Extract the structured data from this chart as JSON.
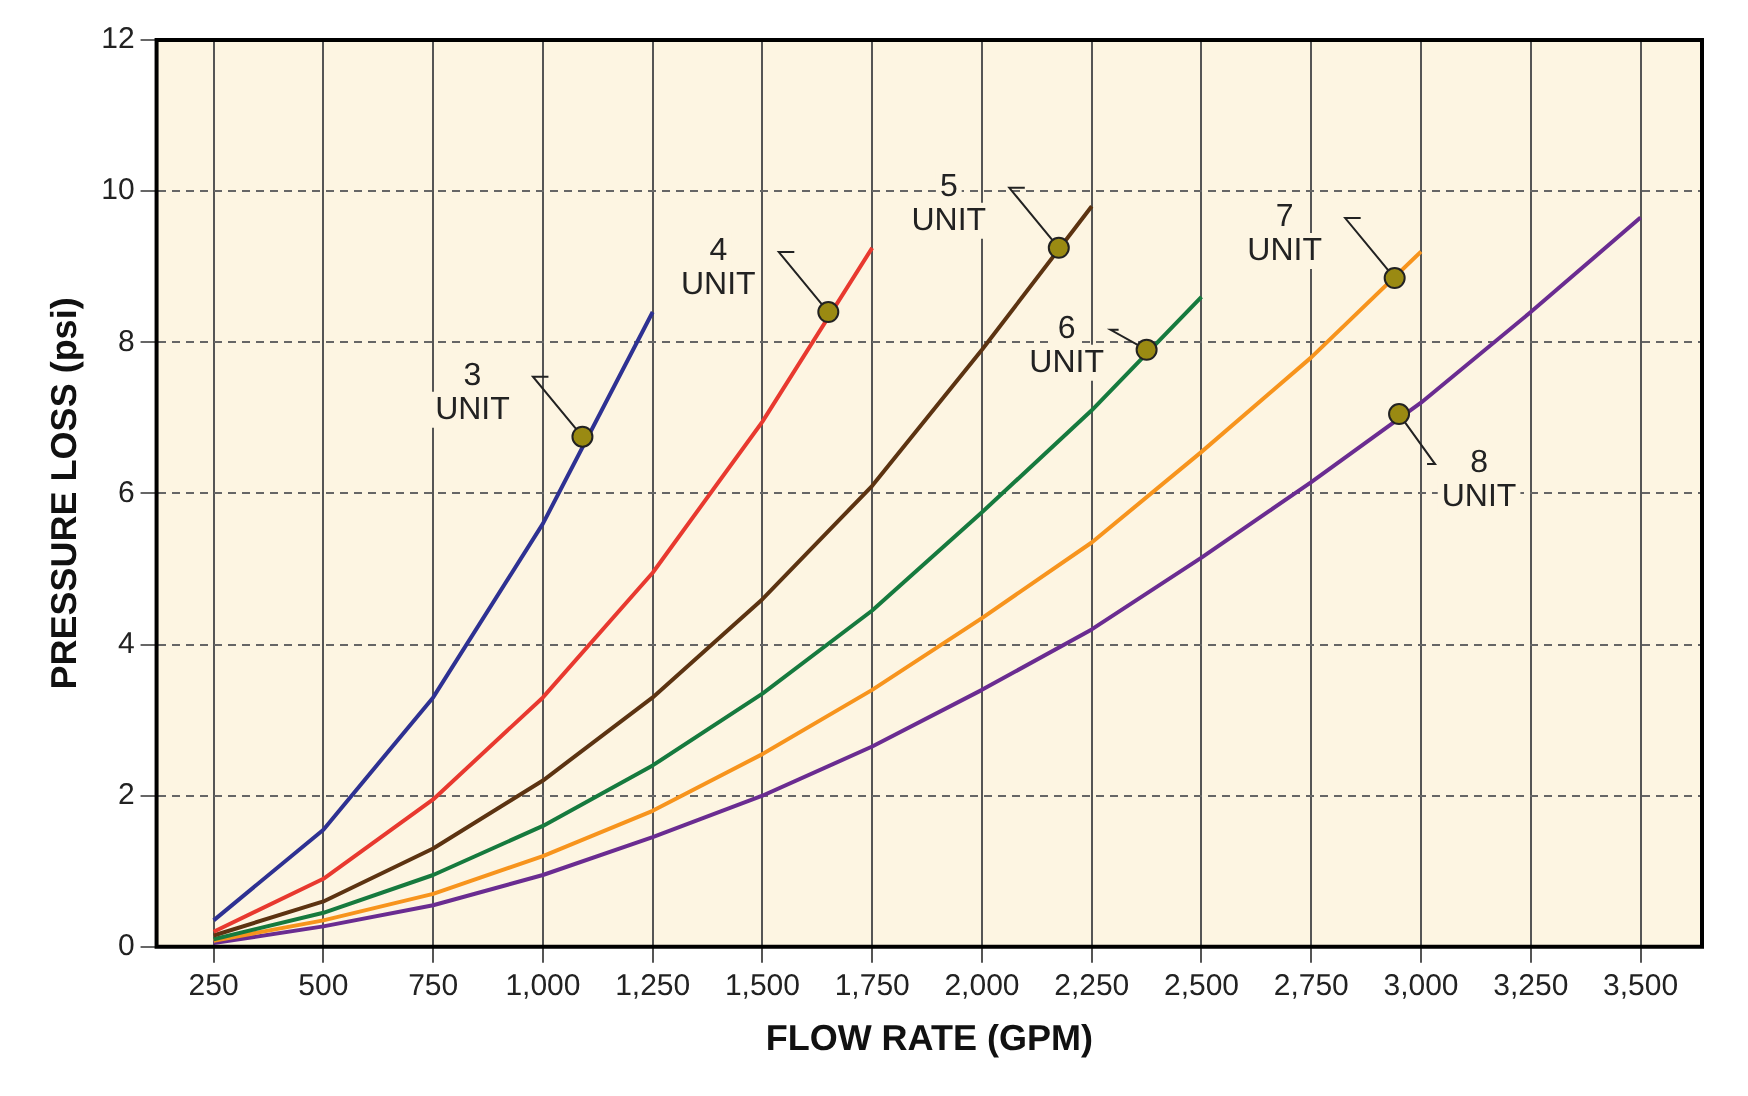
{
  "chart_data": {
    "type": "line",
    "xlabel": "FLOW RATE (GPM)",
    "ylabel": "PRESSURE LOSS (psi)",
    "xlim": [
      120,
      3640
    ],
    "xticks": [
      250,
      500,
      750,
      {
        "value": 1000,
        "label": "1,000"
      },
      {
        "value": 1250,
        "label": "1,250"
      },
      {
        "value": 1500,
        "label": "1,500"
      },
      {
        "value": 1750,
        "label": "1,750"
      },
      {
        "value": 2000,
        "label": "2,000"
      },
      {
        "value": 2250,
        "label": "2,250"
      },
      {
        "value": 2500,
        "label": "2,500"
      },
      {
        "value": 2750,
        "label": "2,750"
      },
      {
        "value": 3000,
        "label": "3,000"
      },
      {
        "value": 3250,
        "label": "3,250"
      },
      {
        "value": 3500,
        "label": "3,500"
      }
    ],
    "ylim": [
      0,
      12
    ],
    "yticks": [
      0,
      2,
      4,
      6,
      8,
      10,
      12
    ],
    "grid": true,
    "legend": false,
    "marker": "none",
    "line_style": "solid",
    "series": [
      {
        "color": "#2e3192",
        "x": [
          250,
          500,
          750,
          1000,
          1250
        ],
        "values": [
          0.35,
          1.55,
          3.3,
          5.6,
          8.4
        ]
      },
      {
        "color": "#e8392f",
        "x": [
          250,
          500,
          750,
          1000,
          1250,
          1500,
          1750
        ],
        "values": [
          0.2,
          0.9,
          1.95,
          3.3,
          4.95,
          6.95,
          9.25
        ]
      },
      {
        "color": "#5c3311",
        "x": [
          250,
          500,
          750,
          1000,
          1250,
          1500,
          1750,
          2000,
          2250
        ],
        "values": [
          0.15,
          0.6,
          1.3,
          2.2,
          3.3,
          4.6,
          6.1,
          7.9,
          9.8
        ]
      },
      {
        "color": "#167a3e",
        "x": [
          250,
          500,
          750,
          1000,
          1250,
          1500,
          1750,
          2000,
          2250,
          2500
        ],
        "values": [
          0.1,
          0.45,
          0.95,
          1.6,
          2.4,
          3.35,
          4.45,
          5.75,
          7.1,
          8.6
        ]
      },
      {
        "color": "#f7941d",
        "x": [
          250,
          500,
          750,
          1000,
          1250,
          1500,
          1750,
          2000,
          2250,
          2500,
          2750,
          3000
        ],
        "values": [
          0.08,
          0.35,
          0.7,
          1.2,
          1.8,
          2.55,
          3.4,
          4.35,
          5.35,
          6.55,
          7.8,
          9.2
        ]
      },
      {
        "color": "#6a2c91",
        "x": [
          250,
          500,
          750,
          1000,
          1250,
          1500,
          1750,
          2000,
          2250,
          2500,
          2750,
          3000,
          3250,
          3500
        ],
        "values": [
          0.05,
          0.27,
          0.55,
          0.95,
          1.45,
          2.0,
          2.65,
          3.4,
          4.2,
          5.15,
          6.15,
          7.2,
          8.4,
          9.65
        ]
      }
    ],
    "annotations": [
      {
        "text": "3\nUNIT",
        "x": 1090,
        "y": 6.75
      },
      {
        "text": "4\nUNIT",
        "x": 1650,
        "y": 8.4
      },
      {
        "text": "5\nUNIT",
        "x": 2175,
        "y": 9.25
      },
      {
        "text": "6\nUNIT",
        "x": 2375,
        "y": 7.9
      },
      {
        "text": "7\nUNIT",
        "x": 2940,
        "y": 8.85
      },
      {
        "text": "8\nUNIT",
        "x": 2950,
        "y": 7.05
      }
    ]
  }
}
